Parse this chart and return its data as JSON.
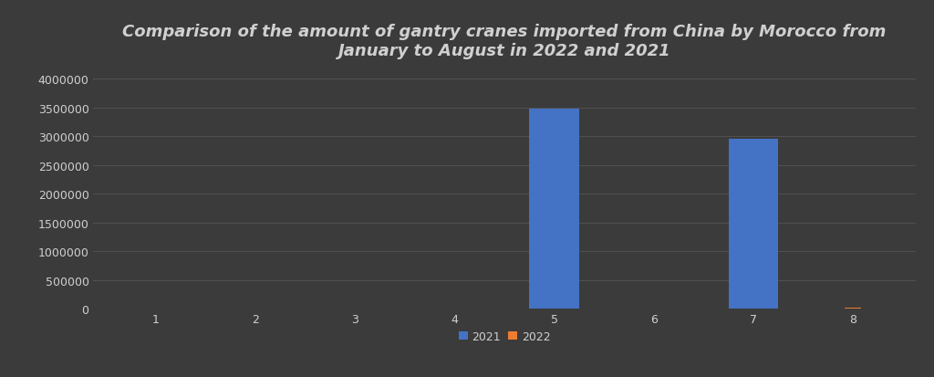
{
  "title": "Comparison of the amount of gantry cranes imported from China by Morocco from\nJanuary to August in 2022 and 2021",
  "months": [
    1,
    2,
    3,
    4,
    5,
    6,
    7,
    8
  ],
  "values_2021": [
    0,
    0,
    0,
    0,
    3480000,
    0,
    2950000,
    0
  ],
  "values_2022": [
    0,
    0,
    0,
    0,
    0,
    0,
    0,
    30000
  ],
  "color_2021": "#4472C4",
  "color_2022": "#ED7D31",
  "background_color": "#3b3b3b",
  "axes_background": "#3b3b3b",
  "text_color": "#d0d0d0",
  "grid_color": "#555555",
  "ylim": [
    0,
    4200000
  ],
  "yticks": [
    0,
    500000,
    1000000,
    1500000,
    2000000,
    2500000,
    3000000,
    3500000,
    4000000
  ],
  "bar_width": 0.5,
  "legend_labels": [
    "2021",
    "2022"
  ],
  "title_fontsize": 13,
  "tick_fontsize": 9,
  "legend_fontsize": 9
}
